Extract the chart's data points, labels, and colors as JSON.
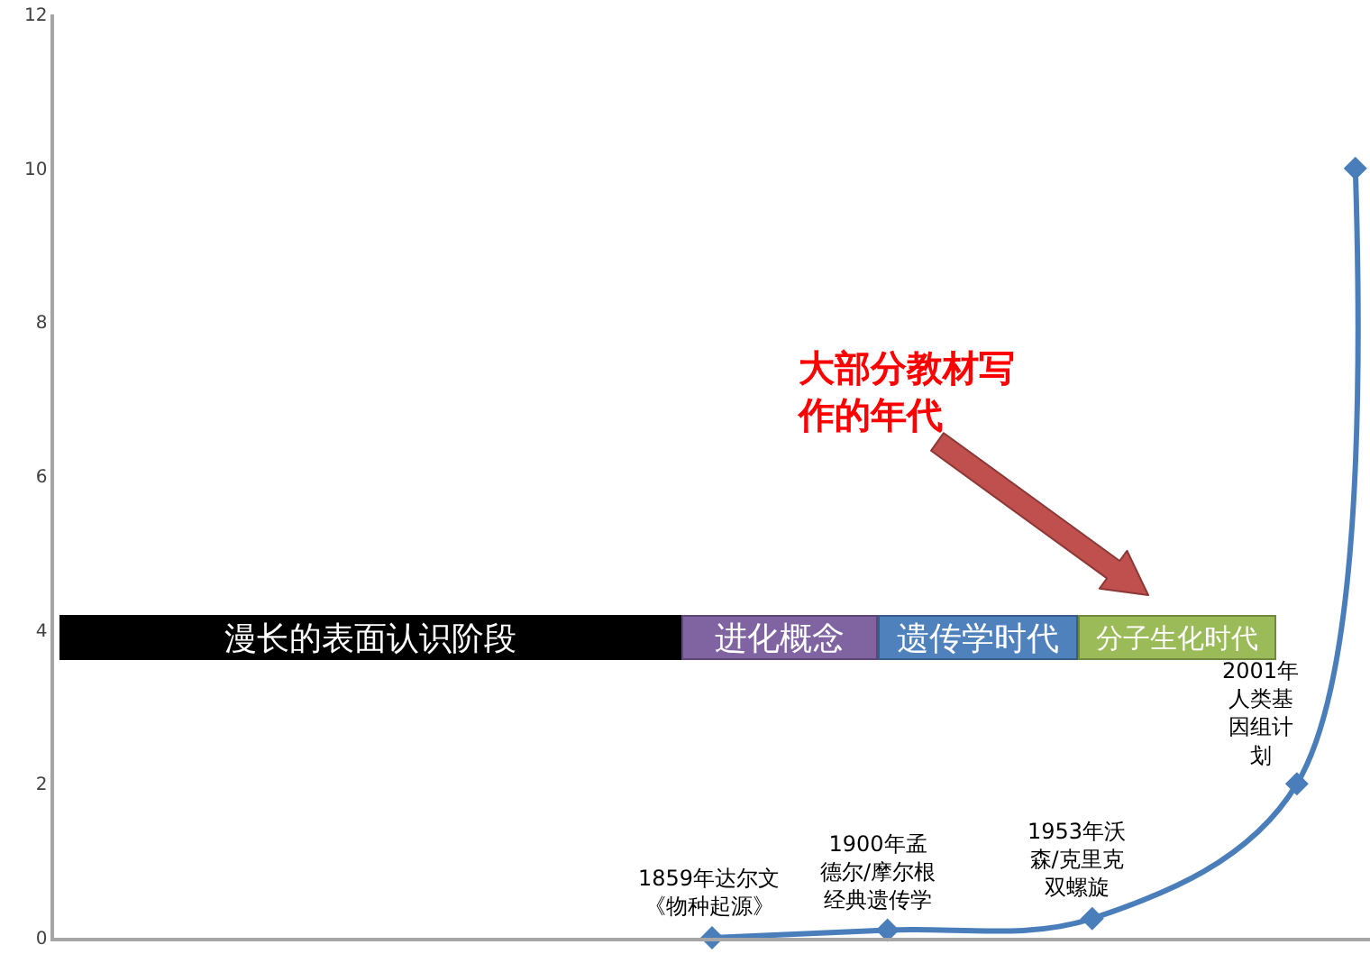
{
  "chart_data": {
    "type": "line",
    "categories": [
      null,
      null,
      null,
      null,
      null,
      null,
      null,
      null,
      null,
      null,
      null,
      null,
      null,
      null,
      null,
      null,
      null,
      null,
      null,
      null,
      null,
      null,
      null,
      null,
      null,
      null,
      null,
      null,
      null,
      null,
      null,
      null,
      null,
      null,
      null,
      null,
      null,
      null,
      null,
      null,
      null,
      null,
      null,
      null,
      null
    ],
    "series": [
      {
        "color": "#4a7ebb",
        "values": [
          null,
          null,
          null,
          null,
          null,
          null,
          null,
          null,
          null,
          null,
          null,
          null,
          null,
          null,
          null,
          null,
          null,
          null,
          null,
          null,
          null,
          null,
          0,
          null,
          null,
          null,
          null,
          null,
          0.1,
          null,
          null,
          null,
          null,
          null,
          null,
          0.25,
          null,
          null,
          null,
          null,
          null,
          null,
          2,
          null,
          10
        ]
      }
    ],
    "ylim": [
      0,
      12
    ],
    "yticks": [
      0,
      2,
      4,
      6,
      8,
      10,
      12
    ],
    "tick_labels": "y",
    "grid": false,
    "marker": "diamond",
    "line_style": "solid",
    "annotations": [
      "大部分教材写作的年代",
      "漫长的表面认识阶段",
      "进化概念",
      "遗传学时代",
      "分子生化时代",
      {
        "text": "1859年达尔文《物种起源》",
        "y": 0
      },
      {
        "text": "1900年孟德尔/摩尔根经典遗传学",
        "y": 0.1
      },
      {
        "text": "1953年沃森/克里克双螺旋",
        "y": 0.25
      },
      "2001年人类基因组计划"
    ]
  }
}
